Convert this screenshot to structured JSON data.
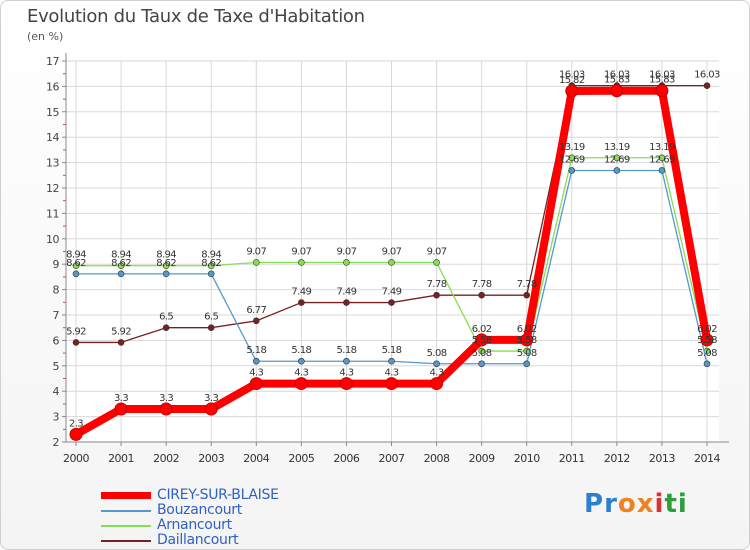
{
  "title": "Evolution du Taux de Taxe d'Habitation",
  "subtitle": "(en %)",
  "logo": [
    "P",
    "r",
    "o",
    "x",
    "i",
    "t",
    "i"
  ],
  "logo_colors": [
    "#2a7fd0",
    "#2a7fd0",
    "#f08020",
    "#f08020",
    "#e03030",
    "#2a9f3a",
    "#2a9f3a"
  ],
  "chart_data": {
    "type": "line",
    "x": [
      "2000",
      "2001",
      "2002",
      "2003",
      "2004",
      "2005",
      "2006",
      "2007",
      "2008",
      "2009",
      "2010",
      "2011",
      "2012",
      "2013",
      "2014"
    ],
    "ylim": [
      2,
      17
    ],
    "yticks": [
      "2",
      "3",
      "4",
      "5",
      "6",
      "7",
      "8",
      "9",
      "10",
      "11",
      "12",
      "13",
      "14",
      "15",
      "16",
      "17"
    ],
    "grid": true,
    "legend_placement": "bottom-left",
    "series": [
      {
        "name": "CIREY-SUR-BLAISE",
        "color": "#ff0000",
        "values": [
          2.3,
          3.3,
          3.3,
          3.3,
          4.3,
          4.3,
          4.3,
          4.3,
          4.3,
          6.02,
          6.02,
          15.82,
          15.83,
          15.83,
          6.02
        ],
        "labels": [
          "2.3",
          "3.3",
          "3.3",
          "3.3",
          "4.3",
          "4.3",
          "4.3",
          "4.3",
          "4.3",
          "6.02",
          "6.02",
          "15.82",
          "15.83",
          "15.83",
          "6.02"
        ]
      },
      {
        "name": "Bouzancourt",
        "color": "#5599cc",
        "values": [
          8.62,
          8.62,
          8.62,
          8.62,
          5.18,
          5.18,
          5.18,
          5.18,
          5.08,
          5.08,
          5.08,
          12.69,
          12.69,
          12.69,
          5.08
        ],
        "labels": [
          "8.62",
          "8.62",
          "8.62",
          "8.62",
          "5.18",
          "5.18",
          "5.18",
          "5.18",
          "5.08",
          "5.08",
          "5.08",
          "12.69",
          "12.69",
          "12.69",
          "5.08"
        ]
      },
      {
        "name": "Arnancourt",
        "color": "#88dd55",
        "values": [
          8.94,
          8.94,
          8.94,
          8.94,
          9.07,
          9.07,
          9.07,
          9.07,
          9.07,
          5.58,
          5.58,
          13.19,
          13.19,
          13.19,
          5.58
        ],
        "labels": [
          "8.94",
          "8.94",
          "8.94",
          "8.94",
          "9.07",
          "9.07",
          "9.07",
          "9.07",
          "9.07",
          "5.58",
          "5.58",
          "13.19",
          "13.19",
          "13.19",
          "5.58"
        ]
      },
      {
        "name": "Daillancourt",
        "color": "#772222",
        "values": [
          5.92,
          5.92,
          6.5,
          6.5,
          6.77,
          7.49,
          7.49,
          7.49,
          7.78,
          7.78,
          7.78,
          16.03,
          16.03,
          16.03,
          16.03
        ],
        "labels": [
          "5.92",
          "5.92",
          "6.5",
          "6.5",
          "6.77",
          "7.49",
          "7.49",
          "7.49",
          "7.78",
          "7.78",
          "7.78",
          "16.03",
          "16.03",
          "16.03",
          "16.03"
        ]
      }
    ]
  }
}
